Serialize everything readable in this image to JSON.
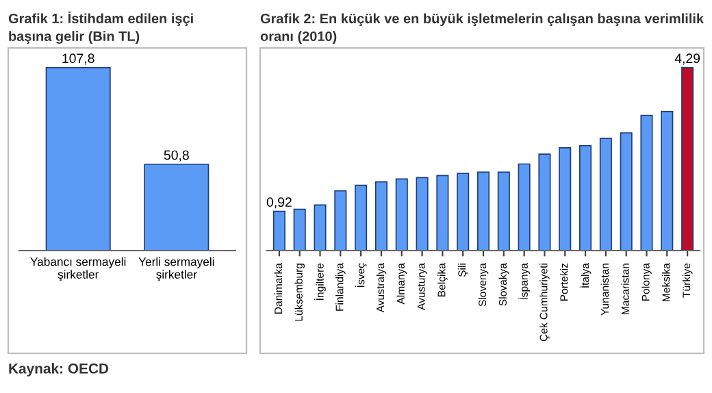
{
  "chart_data": [
    {
      "type": "bar",
      "title": "Grafik 1: İstihdam edilen işçi\nbaşına gelir (Bin TL)",
      "categories": [
        "Yabancı sermayeli\nşirketler",
        "Yerli sermayeli\nşirketler"
      ],
      "values": [
        107.8,
        50.8
      ],
      "color": "#5b9bf5",
      "value_labels": [
        "107,8",
        "50,8"
      ],
      "grid": false,
      "legend": false,
      "annotations": [
        "Kaynak: OECD"
      ]
    },
    {
      "type": "bar",
      "title": "Grafik 2: En küçük ve en büyük işletmelerin çalışan başına verimlilik\noranı (2010)",
      "categories": [
        "Danimarka",
        "Lüksemburg",
        "İngiltere",
        "Finlandiya",
        "İsveç",
        "Avustralya",
        "Almanya",
        "Avusturya",
        "Belçika",
        "Şili",
        "Slovenya",
        "Slovakya",
        "İspanya",
        "Çek Cumhuriyeti",
        "Portekiz",
        "İtalya",
        "Yunanistan",
        "Macaristan",
        "Polonya",
        "Meksika",
        "Türkiye"
      ],
      "values": [
        0.92,
        0.97,
        1.07,
        1.4,
        1.53,
        1.61,
        1.68,
        1.71,
        1.76,
        1.81,
        1.84,
        1.84,
        2.03,
        2.26,
        2.41,
        2.46,
        2.63,
        2.76,
        3.17,
        3.26,
        4.29
      ],
      "colors": [
        "#5b9bf5",
        "#5b9bf5",
        "#5b9bf5",
        "#5b9bf5",
        "#5b9bf5",
        "#5b9bf5",
        "#5b9bf5",
        "#5b9bf5",
        "#5b9bf5",
        "#5b9bf5",
        "#5b9bf5",
        "#5b9bf5",
        "#5b9bf5",
        "#5b9bf5",
        "#5b9bf5",
        "#5b9bf5",
        "#5b9bf5",
        "#5b9bf5",
        "#5b9bf5",
        "#5b9bf5",
        "#c00a2a"
      ],
      "value_labels": [
        "0,92",
        null,
        null,
        null,
        null,
        null,
        null,
        null,
        null,
        null,
        null,
        null,
        null,
        null,
        null,
        null,
        null,
        null,
        null,
        null,
        "4,29"
      ],
      "grid": false,
      "legend": false
    }
  ]
}
